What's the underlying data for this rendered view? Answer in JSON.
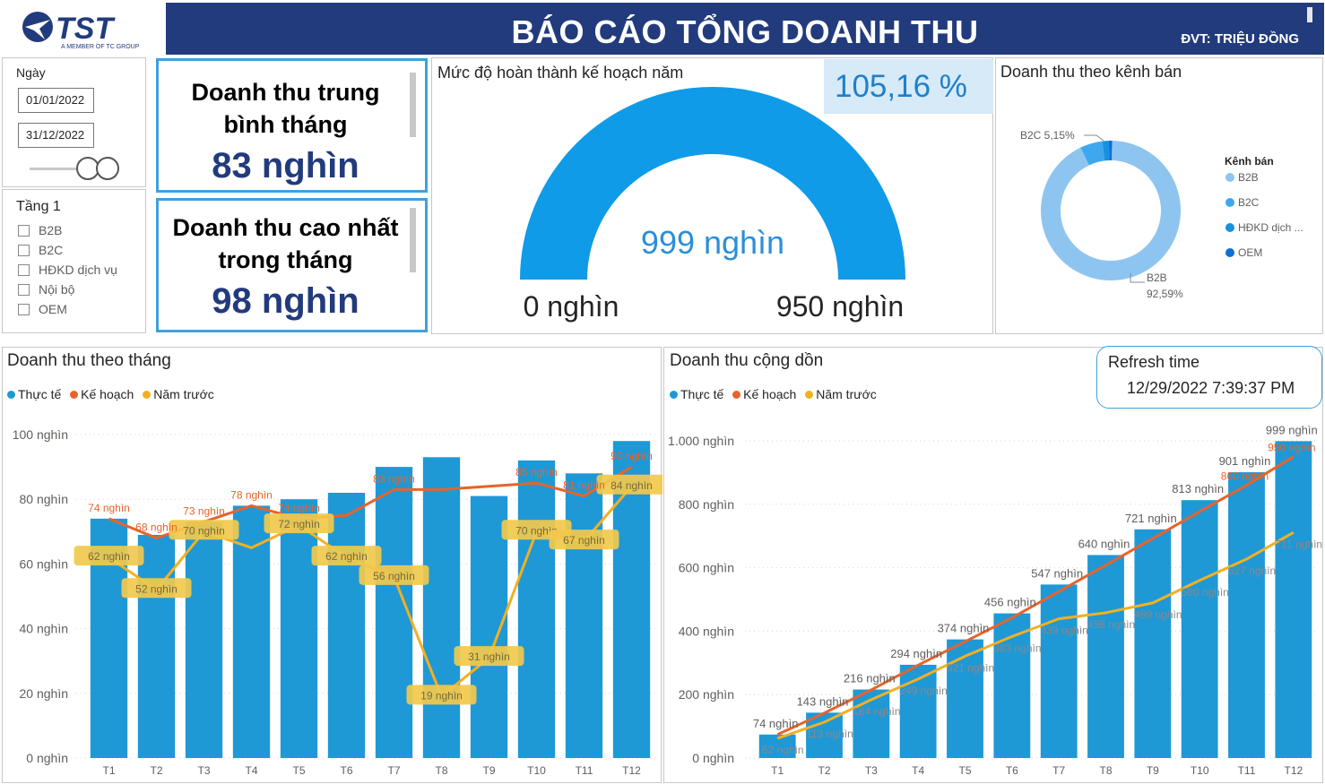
{
  "logo": {
    "brand": "TST",
    "tagline": "A MEMBER OF TC GROUP"
  },
  "header": {
    "title": "BÁO CÁO TỔNG DOANH THU",
    "unit": "ĐVT: TRIỆU ĐỒNG"
  },
  "date_slicer": {
    "label": "Ngày",
    "start": "01/01/2022",
    "end": "31/12/2022"
  },
  "level_slicer": {
    "label": "Tầng 1",
    "options": [
      "B2B",
      "B2C",
      "HĐKD dịch vụ",
      "Nội bộ",
      "OEM"
    ]
  },
  "kpi_avg": {
    "title_line1": "Doanh thu trung",
    "title_line2": "bình tháng",
    "value": "83 nghìn"
  },
  "kpi_max": {
    "title_line1": "Doanh thu cao nhất",
    "title_line2": "trong tháng",
    "value": "98 nghìn"
  },
  "gauge": {
    "title": "Mức độ hoàn thành kế hoạch năm",
    "percent_label": "105,16 %",
    "value_label": "999 nghìn",
    "min_label": "0 nghìn",
    "max_label": "950 nghìn",
    "value": 999,
    "max": 950,
    "color": "#0f9be8"
  },
  "channel": {
    "title": "Doanh thu theo kênh bán",
    "legend_title": "Kênh bán",
    "legend": [
      "B2B",
      "B2C",
      "HĐKD dịch ...",
      "OEM"
    ],
    "label_b2c": "B2C 5,15%",
    "label_b2b_name": "B2B",
    "label_b2b_pct": "92,59%",
    "chart_data": {
      "type": "pie",
      "categories": [
        "B2B",
        "B2C",
        "HĐKD dịch vụ",
        "OEM"
      ],
      "values": [
        92.59,
        5.15,
        1.5,
        0.76
      ],
      "colors": [
        "#8ec5f0",
        "#3ea8ee",
        "#1692e0",
        "#0f6fd0"
      ]
    }
  },
  "monthly": {
    "title": "Doanh thu theo tháng",
    "legend": [
      "Thực tế",
      "Kế hoạch",
      "Năm trước"
    ],
    "colors": {
      "actual": "#1f98d6",
      "plan": "#e8632b",
      "prev": "#f2b021",
      "prev_label_bg": "#f2c94c"
    },
    "chart_data": {
      "type": "bar",
      "categories": [
        "T1",
        "T2",
        "T3",
        "T4",
        "T5",
        "T6",
        "T7",
        "T8",
        "T9",
        "T10",
        "T11",
        "T12"
      ],
      "ylim": [
        0,
        100
      ],
      "yticks": [
        "0 nghìn",
        "20 nghìn",
        "40 nghìn",
        "60 nghìn",
        "80 nghìn",
        "100 nghìn"
      ],
      "series": [
        {
          "name": "Thực tế",
          "values": [
            74,
            69,
            73,
            78,
            80,
            82,
            90,
            93,
            81,
            92,
            88,
            98
          ]
        },
        {
          "name": "Kế hoạch",
          "values": [
            74,
            68,
            73,
            78,
            74,
            75,
            83,
            83,
            84,
            85,
            81,
            90
          ],
          "labels": [
            "74 nghìn",
            "68 nghìn",
            "73 nghìn",
            "78 nghìn",
            "74 nghìn",
            "",
            "83 nghìn",
            "",
            "",
            "85 nghìn",
            "81 nghìn",
            "90 nghìn"
          ]
        },
        {
          "name": "Năm trước",
          "values": [
            62,
            52,
            70,
            65,
            72,
            62,
            56,
            19,
            31,
            70,
            67,
            84
          ],
          "labels": [
            "62 nghìn",
            "52 nghìn",
            "70 nghìn",
            "",
            "72 nghìn",
            "62 nghìn",
            "56 nghìn",
            "19 nghìn",
            "31 nghìn",
            "70 nghìn",
            "67 nghìn",
            "84 nghìn"
          ]
        }
      ]
    }
  },
  "cumulative": {
    "title": "Doanh thu cộng dồn",
    "legend": [
      "Thực tế",
      "Kế hoạch",
      "Năm trước"
    ],
    "chart_data": {
      "type": "bar",
      "categories": [
        "T1",
        "T2",
        "T3",
        "T4",
        "T5",
        "T6",
        "T7",
        "T8",
        "T9",
        "T10",
        "T11",
        "T12"
      ],
      "ylim": [
        0,
        1000
      ],
      "yticks": [
        "0 nghìn",
        "200 nghìn",
        "400 nghìn",
        "600 nghìn",
        "800 nghìn",
        "1.000 nghìn"
      ],
      "series": [
        {
          "name": "Thực tế",
          "values": [
            74,
            143,
            216,
            294,
            374,
            456,
            547,
            640,
            721,
            813,
            901,
            999
          ],
          "labels": [
            "74 nghìn",
            "143 nghìn",
            "216 nghìn",
            "294 nghìn",
            "374 nghìn",
            "456 nghìn",
            "547 nghìn",
            "640 nghìn",
            "721 nghìn",
            "813 nghìn",
            "901 nghìn",
            "999 nghìn"
          ]
        },
        {
          "name": "Kế hoạch",
          "values": [
            74,
            142,
            215,
            293,
            367,
            442,
            525,
            608,
            692,
            777,
            860,
            950
          ],
          "labels": [
            "",
            "",
            "",
            "",
            "",
            "",
            "",
            "",
            "",
            "",
            "860 nghìn",
            "950 nghìn"
          ]
        },
        {
          "name": "Năm trước",
          "values": [
            62,
            113,
            184,
            249,
            321,
            383,
            439,
            458,
            489,
            560,
            627,
            711
          ],
          "labels": [
            "62 nghìn",
            "113 nghìn",
            "184 nghìn",
            "249 nghìn",
            "321 nghìn",
            "383 nghìn",
            "439 nghìn",
            "458 nghìn",
            "489 nghìn",
            "560 nghìn",
            "627 nghìn",
            "711 nghìn"
          ]
        }
      ]
    }
  },
  "refresh": {
    "title": "Refresh time",
    "time": "12/29/2022 7:39:37 PM"
  }
}
